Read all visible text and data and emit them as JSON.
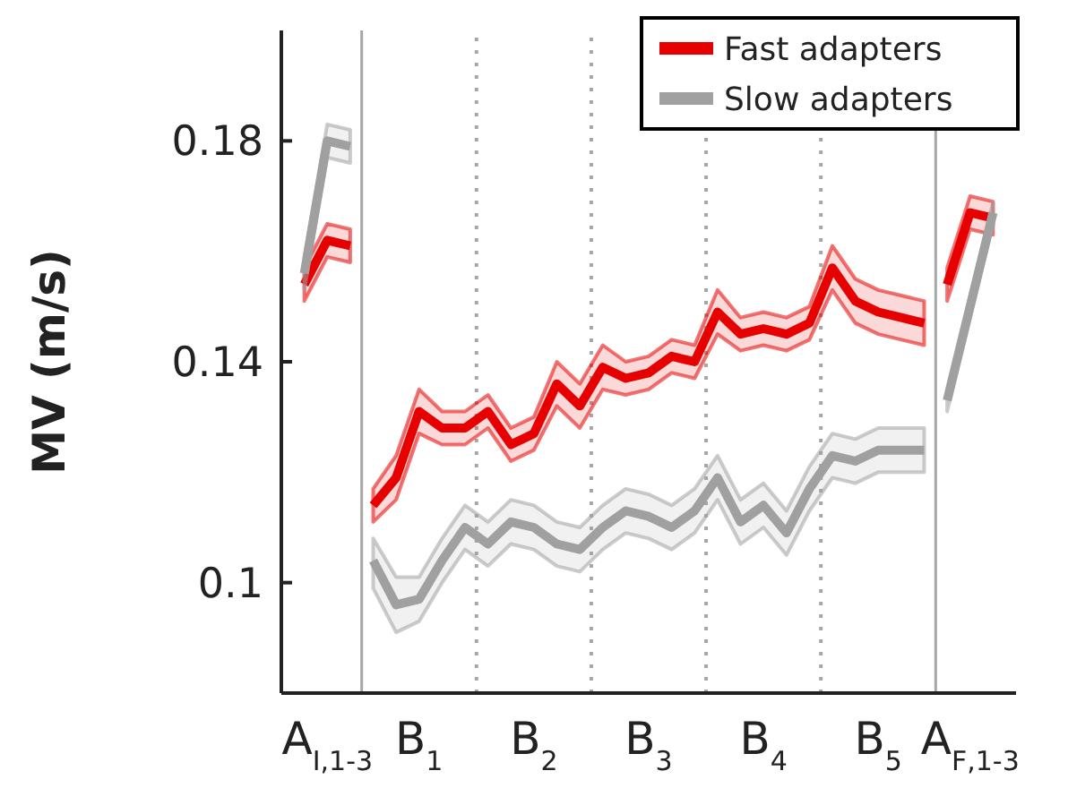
{
  "chart_data": {
    "type": "line",
    "ylabel": "MV (m/s)",
    "ylim": [
      0.08,
      0.2
    ],
    "yticks": [
      0.1,
      0.14,
      0.18
    ],
    "categories": [
      null,
      "A$_{I,1-3}$",
      null,
      null,
      null,
      "B$_{1}$",
      null,
      null,
      null,
      null,
      "B$_{2}$",
      null,
      null,
      null,
      null,
      "B$_{3}$",
      null,
      null,
      null,
      null,
      "B$_{4}$",
      null,
      null,
      null,
      null,
      "B$_{5}$",
      null,
      null,
      null,
      "A$_{F,1-3}$",
      null
    ],
    "grid": false,
    "legend": "top right",
    "marker": "none",
    "line_style": "solid",
    "series": [
      {
        "name": "Fast adapters",
        "color": "#e60000",
        "values": [
          null,
          null,
          null,
          0.114,
          0.119,
          0.131,
          0.128,
          0.128,
          0.131,
          0.125,
          0.127,
          0.136,
          0.132,
          0.139,
          0.137,
          0.138,
          0.141,
          0.14,
          0.149,
          0.145,
          0.146,
          0.145,
          0.147,
          0.157,
          0.151,
          0.149,
          0.148,
          0.147,
          null,
          null,
          null
        ],
        "lower": [
          null,
          null,
          null,
          0.111,
          0.115,
          0.127,
          0.125,
          0.125,
          0.128,
          0.122,
          0.124,
          0.132,
          0.128,
          0.135,
          0.134,
          0.135,
          0.138,
          0.137,
          0.145,
          0.142,
          0.143,
          0.142,
          0.144,
          0.153,
          0.147,
          0.145,
          0.144,
          0.143,
          null,
          null,
          null
        ],
        "upper": [
          null,
          null,
          null,
          0.117,
          0.123,
          0.135,
          0.131,
          0.131,
          0.134,
          0.128,
          0.13,
          0.14,
          0.136,
          0.143,
          0.14,
          0.141,
          0.144,
          0.143,
          0.153,
          0.148,
          0.149,
          0.148,
          0.15,
          0.161,
          0.155,
          0.153,
          0.152,
          0.151,
          null,
          null,
          null
        ]
      },
      {
        "name": "Slow adapters",
        "color": "#a0a0a0",
        "values": [
          null,
          null,
          null,
          0.104,
          0.096,
          0.097,
          0.104,
          0.11,
          0.107,
          0.111,
          0.11,
          0.107,
          0.106,
          0.11,
          0.113,
          0.112,
          0.11,
          0.113,
          0.119,
          0.111,
          0.114,
          0.109,
          0.117,
          0.123,
          0.122,
          0.124,
          0.124,
          0.124,
          null,
          null,
          null
        ],
        "lower": [
          null,
          null,
          null,
          0.099,
          0.091,
          0.093,
          0.1,
          0.106,
          0.103,
          0.107,
          0.106,
          0.103,
          0.102,
          0.106,
          0.109,
          0.108,
          0.106,
          0.109,
          0.115,
          0.107,
          0.11,
          0.105,
          0.113,
          0.119,
          0.118,
          0.12,
          0.12,
          0.12,
          null,
          null,
          null
        ],
        "upper": [
          null,
          null,
          null,
          0.108,
          0.101,
          0.101,
          0.108,
          0.114,
          0.111,
          0.115,
          0.114,
          0.111,
          0.11,
          0.114,
          0.117,
          0.116,
          0.114,
          0.117,
          0.123,
          0.115,
          0.118,
          0.113,
          0.121,
          0.127,
          0.126,
          0.128,
          0.128,
          0.128,
          null,
          null,
          null
        ]
      },
      {
        "color": "#e60000",
        "values": [
          0.154,
          0.162,
          0.161,
          null,
          null,
          null,
          null,
          null,
          null,
          null,
          null,
          null,
          null,
          null,
          null,
          null,
          null,
          null,
          null,
          null,
          null,
          null,
          null,
          null,
          null,
          null,
          null,
          null,
          null,
          null,
          null
        ],
        "lower": [
          0.151,
          0.159,
          0.158,
          null,
          null,
          null,
          null,
          null,
          null,
          null,
          null,
          null,
          null,
          null,
          null,
          null,
          null,
          null,
          null,
          null,
          null,
          null,
          null,
          null,
          null,
          null,
          null,
          null,
          null,
          null,
          null
        ],
        "upper": [
          0.157,
          0.165,
          0.164,
          null,
          null,
          null,
          null,
          null,
          null,
          null,
          null,
          null,
          null,
          null,
          null,
          null,
          null,
          null,
          null,
          null,
          null,
          null,
          null,
          null,
          null,
          null,
          null,
          null,
          null,
          null,
          null
        ]
      },
      {
        "color": "#a0a0a0",
        "values": [
          0.156,
          0.18,
          0.179,
          null,
          null,
          null,
          null,
          null,
          null,
          null,
          null,
          null,
          null,
          null,
          null,
          null,
          null,
          null,
          null,
          null,
          null,
          null,
          null,
          null,
          null,
          null,
          null,
          null,
          null,
          null,
          null
        ],
        "lower": [
          0.153,
          0.177,
          0.176,
          null,
          null,
          null,
          null,
          null,
          null,
          null,
          null,
          null,
          null,
          null,
          null,
          null,
          null,
          null,
          null,
          null,
          null,
          null,
          null,
          null,
          null,
          null,
          null,
          null,
          null,
          null,
          null
        ],
        "upper": [
          0.159,
          0.183,
          0.182,
          null,
          null,
          null,
          null,
          null,
          null,
          null,
          null,
          null,
          null,
          null,
          null,
          null,
          null,
          null,
          null,
          null,
          null,
          null,
          null,
          null,
          null,
          null,
          null,
          null,
          null,
          null,
          null
        ]
      },
      {
        "color": "#e60000",
        "values": [
          null,
          null,
          null,
          null,
          null,
          null,
          null,
          null,
          null,
          null,
          null,
          null,
          null,
          null,
          null,
          null,
          null,
          null,
          null,
          null,
          null,
          null,
          null,
          null,
          null,
          null,
          null,
          null,
          0.154,
          0.167,
          0.166
        ],
        "lower": [
          null,
          null,
          null,
          null,
          null,
          null,
          null,
          null,
          null,
          null,
          null,
          null,
          null,
          null,
          null,
          null,
          null,
          null,
          null,
          null,
          null,
          null,
          null,
          null,
          null,
          null,
          null,
          null,
          0.151,
          0.164,
          0.163
        ],
        "upper": [
          null,
          null,
          null,
          null,
          null,
          null,
          null,
          null,
          null,
          null,
          null,
          null,
          null,
          null,
          null,
          null,
          null,
          null,
          null,
          null,
          null,
          null,
          null,
          null,
          null,
          null,
          null,
          null,
          0.157,
          0.17,
          0.169
        ]
      },
      {
        "color": "#a0a0a0",
        "values": [
          null,
          null,
          null,
          null,
          null,
          null,
          null,
          null,
          null,
          null,
          null,
          null,
          null,
          null,
          null,
          null,
          null,
          null,
          null,
          null,
          null,
          null,
          null,
          null,
          null,
          null,
          null,
          null,
          0.133,
          0.15,
          0.167
        ],
        "lower": [
          null,
          null,
          null,
          null,
          null,
          null,
          null,
          null,
          null,
          null,
          null,
          null,
          null,
          null,
          null,
          null,
          null,
          null,
          null,
          null,
          null,
          null,
          null,
          null,
          null,
          null,
          null,
          null,
          0.131,
          0.148,
          0.165
        ],
        "upper": [
          null,
          null,
          null,
          null,
          null,
          null,
          null,
          null,
          null,
          null,
          null,
          null,
          null,
          null,
          null,
          null,
          null,
          null,
          null,
          null,
          null,
          null,
          null,
          null,
          null,
          null,
          null,
          null,
          0.135,
          0.152,
          0.169
        ]
      }
    ]
  }
}
